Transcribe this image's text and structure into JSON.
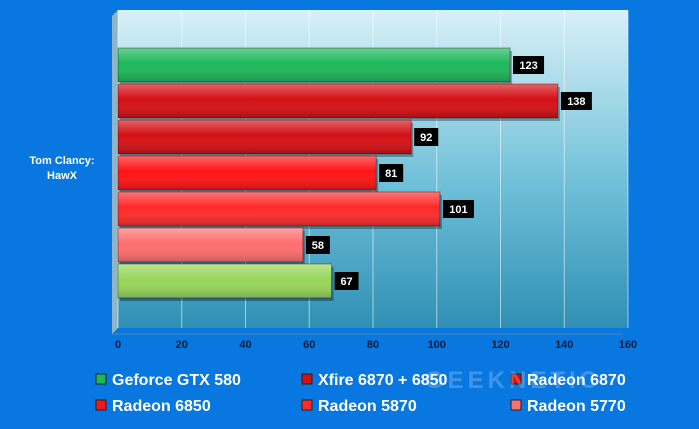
{
  "chart_data": {
    "type": "bar",
    "orientation": "horizontal",
    "categories": [
      "Tom Clancy: HawX"
    ],
    "category_lines": [
      "Tom Clancy:",
      "HawX"
    ],
    "xlim": [
      0,
      160
    ],
    "x_ticks": [
      0,
      20,
      40,
      60,
      80,
      100,
      120,
      140,
      160
    ],
    "grid": true,
    "legend_position": "bottom",
    "series": [
      {
        "name": "Geforce GTX 580",
        "values": [
          123
        ],
        "color": "#1db85a"
      },
      {
        "name": "Xfire 6870 + 6850",
        "values": [
          138
        ],
        "color": "#d40f14"
      },
      {
        "name": "Radeon 6870",
        "values": [
          92
        ],
        "color": "#d40f14"
      },
      {
        "name": "Radeon 6850",
        "values": [
          81
        ],
        "color": "#ff1414"
      },
      {
        "name": "Radeon 5870",
        "values": [
          101
        ],
        "color": "#ff2a2a"
      },
      {
        "name": "Radeon 5770",
        "values": [
          58
        ],
        "color": "#ff6e6e"
      },
      {
        "name": "",
        "values": [
          67
        ],
        "color": "#98d65a"
      }
    ]
  },
  "watermark": "GEEKNETIC"
}
